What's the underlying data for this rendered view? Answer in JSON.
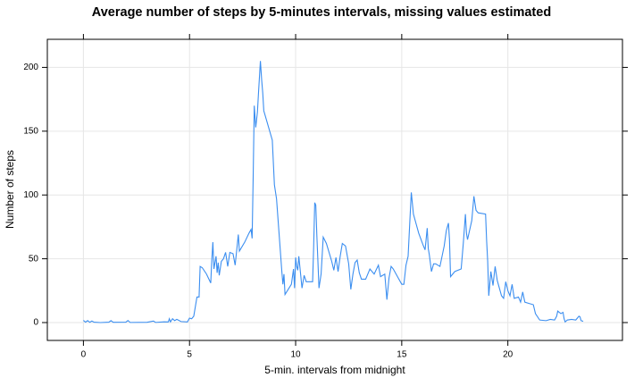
{
  "chart_data": {
    "type": "line",
    "title": "Average number of steps by 5-minutes intervals, missing values estimated",
    "x_label": "5-min. intervals from midnight",
    "y_label": "Number of steps",
    "color": "#3b8ef0",
    "grid": true,
    "xlim": [
      -1.7,
      25.4
    ],
    "ylim": [
      -14,
      222
    ],
    "xticks": [
      0,
      5,
      10,
      15,
      20
    ],
    "yticks": [
      0,
      50,
      100,
      150,
      200
    ],
    "x": [
      0,
      0.1,
      0.2,
      0.3,
      0.4,
      0.5,
      0.8,
      1.2,
      1.3,
      1.4,
      2.0,
      2.1,
      2.2,
      3.0,
      3.3,
      3.4,
      3.8,
      4.0,
      4.05,
      4.1,
      4.2,
      4.3,
      4.4,
      4.6,
      4.9,
      5.0,
      5.1,
      5.2,
      5.35,
      5.45,
      5.5,
      5.6,
      5.8,
      6.0,
      6.05,
      6.1,
      6.15,
      6.25,
      6.3,
      6.35,
      6.4,
      6.5,
      6.6,
      6.7,
      6.8,
      6.9,
      7.05,
      7.15,
      7.3,
      7.35,
      7.6,
      7.8,
      7.9,
      7.95,
      8.0,
      8.05,
      8.12,
      8.2,
      8.25,
      8.34,
      8.4,
      8.45,
      8.5,
      8.9,
      9.0,
      9.1,
      9.35,
      9.4,
      9.45,
      9.5,
      9.8,
      9.9,
      9.95,
      10.0,
      10.05,
      10.1,
      10.15,
      10.3,
      10.4,
      10.5,
      10.8,
      10.85,
      10.9,
      10.95,
      11.0,
      11.05,
      11.1,
      11.2,
      11.3,
      11.45,
      11.7,
      11.8,
      11.9,
      12.0,
      12.1,
      12.2,
      12.35,
      12.5,
      12.6,
      12.7,
      12.8,
      12.9,
      13.0,
      13.1,
      13.3,
      13.5,
      13.7,
      13.9,
      14.0,
      14.2,
      14.3,
      14.4,
      14.5,
      14.6,
      14.8,
      15.0,
      15.1,
      15.2,
      15.3,
      15.38,
      15.45,
      15.55,
      15.8,
      16.0,
      16.1,
      16.2,
      16.25,
      16.3,
      16.4,
      16.5,
      16.6,
      16.8,
      17.0,
      17.1,
      17.2,
      17.25,
      17.3,
      17.5,
      17.8,
      17.9,
      18.0,
      18.05,
      18.1,
      18.3,
      18.4,
      18.5,
      18.6,
      18.95,
      19.0,
      19.05,
      19.1,
      19.2,
      19.3,
      19.4,
      19.5,
      19.6,
      19.7,
      19.8,
      19.9,
      20.0,
      20.1,
      20.2,
      20.3,
      20.5,
      20.6,
      20.7,
      20.8,
      21.0,
      21.2,
      21.3,
      21.5,
      21.8,
      22.0,
      22.2,
      22.3,
      22.35,
      22.5,
      22.6,
      22.65,
      22.7,
      22.8,
      23.0,
      23.2,
      23.35,
      23.4,
      23.45,
      23.55
    ],
    "values": [
      1.7,
      0.3,
      1.5,
      0.2,
      1.2,
      0.3,
      0,
      0.3,
      1.5,
      0.2,
      0.3,
      1.6,
      0.1,
      0.2,
      1.2,
      0.1,
      0.6,
      0.5,
      3,
      0.5,
      3,
      1.5,
      2.5,
      0.8,
      0.5,
      3.5,
      3,
      5,
      20,
      20,
      44,
      43,
      38,
      31,
      49,
      63,
      42,
      52,
      39,
      47,
      37,
      48,
      50,
      55,
      44,
      55,
      54,
      45,
      69,
      56,
      63,
      70,
      73,
      66,
      115,
      170,
      153,
      165,
      180,
      205,
      190,
      180,
      166,
      143,
      108,
      97,
      40,
      30,
      38,
      22,
      30,
      42,
      27,
      51,
      44,
      41,
      52,
      27,
      37,
      32,
      32,
      60,
      94,
      92,
      68,
      48,
      27,
      38,
      67,
      62,
      48,
      41,
      51,
      40,
      52,
      62,
      60,
      46,
      26,
      38,
      47,
      49,
      39,
      34,
      34,
      42,
      38,
      45,
      36,
      38,
      18,
      35,
      44,
      42,
      36,
      30,
      30,
      45,
      52,
      79,
      102,
      85,
      70,
      61,
      57,
      74,
      58,
      53,
      40,
      46,
      46,
      44,
      60,
      72,
      78,
      65,
      36,
      40,
      42,
      62,
      85,
      70,
      65,
      80,
      99,
      88,
      86,
      85,
      64,
      48,
      21,
      40,
      29,
      44,
      33,
      27,
      21,
      19,
      32,
      25,
      21,
      30,
      19,
      20,
      16,
      24,
      16,
      15,
      14,
      7,
      2,
      1.5,
      2.5,
      2,
      5,
      9,
      7,
      8,
      3,
      0.5,
      2,
      2.5,
      2,
      5,
      4.5,
      1.5,
      1
    ]
  }
}
